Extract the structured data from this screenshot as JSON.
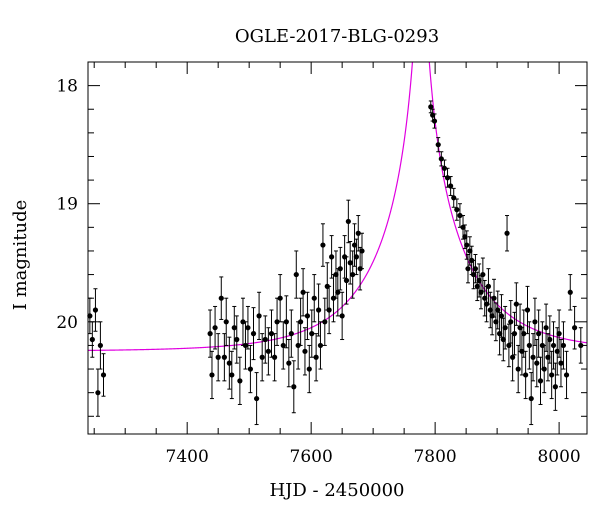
{
  "chart_data": {
    "type": "scatter",
    "title": "OGLE-2017-BLG-0293",
    "xlabel": "HJD - 2450000",
    "ylabel": "I magnitude",
    "xlim": [
      7240,
      8045
    ],
    "ylim": [
      20.95,
      17.8
    ],
    "y_inverted": true,
    "x_ticks": [
      7400,
      7600,
      7800,
      8000
    ],
    "y_ticks": [
      18,
      19,
      20
    ],
    "grid": false,
    "colors": {
      "data": "#000000",
      "model": "#e000e0"
    },
    "model": {
      "type": "line",
      "t0": 7777,
      "tE": 140,
      "u0": 0.04,
      "baseline_mag": 20.25
    },
    "series": [
      {
        "type": "scatter_errorbars",
        "points": [
          [
            7243,
            19.95,
            0.15
          ],
          [
            7247,
            20.15,
            0.15
          ],
          [
            7252,
            19.9,
            0.18
          ],
          [
            7256,
            20.6,
            0.2
          ],
          [
            7260,
            20.2,
            0.2
          ],
          [
            7265,
            20.45,
            0.18
          ],
          [
            7437,
            20.1,
            0.2
          ],
          [
            7440,
            20.45,
            0.2
          ],
          [
            7445,
            20.05,
            0.18
          ],
          [
            7450,
            20.3,
            0.2
          ],
          [
            7455,
            19.8,
            0.18
          ],
          [
            7460,
            20.3,
            0.2
          ],
          [
            7463,
            20.0,
            0.2
          ],
          [
            7468,
            20.35,
            0.22
          ],
          [
            7472,
            20.45,
            0.2
          ],
          [
            7476,
            20.05,
            0.18
          ],
          [
            7480,
            20.15,
            0.2
          ],
          [
            7485,
            20.5,
            0.2
          ],
          [
            7490,
            20.0,
            0.2
          ],
          [
            7494,
            20.2,
            0.2
          ],
          [
            7498,
            20.05,
            0.18
          ],
          [
            7502,
            20.4,
            0.2
          ],
          [
            7507,
            20.1,
            0.22
          ],
          [
            7512,
            20.65,
            0.22
          ],
          [
            7516,
            19.95,
            0.2
          ],
          [
            7521,
            20.3,
            0.2
          ],
          [
            7526,
            20.15,
            0.2
          ],
          [
            7531,
            20.25,
            0.2
          ],
          [
            7536,
            20.1,
            0.2
          ],
          [
            7541,
            20.3,
            0.2
          ],
          [
            7545,
            20.0,
            0.2
          ],
          [
            7550,
            19.8,
            0.2
          ],
          [
            7555,
            20.2,
            0.2
          ],
          [
            7560,
            20.0,
            0.22
          ],
          [
            7564,
            20.35,
            0.2
          ],
          [
            7568,
            20.1,
            0.2
          ],
          [
            7572,
            20.55,
            0.22
          ],
          [
            7576,
            19.6,
            0.2
          ],
          [
            7579,
            20.2,
            0.2
          ],
          [
            7583,
            20.0,
            0.2
          ],
          [
            7587,
            19.75,
            0.2
          ],
          [
            7590,
            20.25,
            0.2
          ],
          [
            7594,
            19.95,
            0.2
          ],
          [
            7597,
            20.4,
            0.2
          ],
          [
            7601,
            20.1,
            0.2
          ],
          [
            7605,
            19.8,
            0.2
          ],
          [
            7608,
            20.3,
            0.2
          ],
          [
            7612,
            19.9,
            0.22
          ],
          [
            7615,
            20.2,
            0.2
          ],
          [
            7619,
            19.35,
            0.18
          ],
          [
            7622,
            20.0,
            0.2
          ],
          [
            7626,
            19.7,
            0.2
          ],
          [
            7629,
            19.9,
            0.2
          ],
          [
            7633,
            19.45,
            0.18
          ],
          [
            7636,
            19.8,
            0.2
          ],
          [
            7640,
            19.6,
            0.2
          ],
          [
            7643,
            19.75,
            0.2
          ],
          [
            7647,
            19.55,
            0.18
          ],
          [
            7650,
            19.95,
            0.2
          ],
          [
            7654,
            19.45,
            0.18
          ],
          [
            7657,
            19.65,
            0.2
          ],
          [
            7660,
            19.15,
            0.18
          ],
          [
            7663,
            19.5,
            0.18
          ],
          [
            7667,
            19.6,
            0.2
          ],
          [
            7670,
            19.35,
            0.18
          ],
          [
            7673,
            19.45,
            0.15
          ],
          [
            7676,
            19.25,
            0.15
          ],
          [
            7679,
            19.55,
            0.18
          ],
          [
            7682,
            19.4,
            0.15
          ],
          [
            7793,
            18.18,
            0.05
          ],
          [
            7796,
            18.25,
            0.05
          ],
          [
            7799,
            18.3,
            0.06
          ],
          [
            7805,
            18.5,
            0.06
          ],
          [
            7810,
            18.62,
            0.06
          ],
          [
            7815,
            18.7,
            0.07
          ],
          [
            7820,
            18.78,
            0.08
          ],
          [
            7825,
            18.85,
            0.08
          ],
          [
            7830,
            18.95,
            0.08
          ],
          [
            7835,
            19.05,
            0.09
          ],
          [
            7840,
            19.1,
            0.1
          ],
          [
            7845,
            19.2,
            0.1
          ],
          [
            7848,
            19.28,
            0.1
          ],
          [
            7851,
            19.35,
            0.12
          ],
          [
            7853,
            19.55,
            0.12
          ],
          [
            7856,
            19.4,
            0.12
          ],
          [
            7859,
            19.48,
            0.12
          ],
          [
            7862,
            19.6,
            0.12
          ],
          [
            7865,
            19.55,
            0.12
          ],
          [
            7868,
            19.7,
            0.12
          ],
          [
            7871,
            19.65,
            0.14
          ],
          [
            7874,
            19.75,
            0.14
          ],
          [
            7877,
            19.6,
            0.14
          ],
          [
            7880,
            19.8,
            0.15
          ],
          [
            7883,
            19.85,
            0.15
          ],
          [
            7886,
            19.7,
            0.15
          ],
          [
            7889,
            19.9,
            0.15
          ],
          [
            7892,
            19.95,
            0.16
          ],
          [
            7895,
            19.8,
            0.16
          ],
          [
            7898,
            20.0,
            0.16
          ],
          [
            7901,
            19.9,
            0.16
          ],
          [
            7904,
            20.1,
            0.18
          ],
          [
            7907,
            19.95,
            0.18
          ],
          [
            7910,
            20.15,
            0.18
          ],
          [
            7913,
            20.05,
            0.18
          ],
          [
            7916,
            19.25,
            0.15
          ],
          [
            7919,
            20.2,
            0.18
          ],
          [
            7922,
            20.0,
            0.18
          ],
          [
            7925,
            20.3,
            0.2
          ],
          [
            7928,
            20.1,
            0.18
          ],
          [
            7931,
            19.85,
            0.18
          ],
          [
            7934,
            20.4,
            0.2
          ],
          [
            7937,
            20.05,
            0.2
          ],
          [
            7940,
            20.25,
            0.2
          ],
          [
            7943,
            20.1,
            0.2
          ],
          [
            7946,
            20.45,
            0.2
          ],
          [
            7949,
            19.9,
            0.2
          ],
          [
            7952,
            20.2,
            0.2
          ],
          [
            7955,
            20.65,
            0.22
          ],
          [
            7958,
            20.3,
            0.2
          ],
          [
            7961,
            20.0,
            0.2
          ],
          [
            7964,
            20.35,
            0.2
          ],
          [
            7967,
            20.1,
            0.2
          ],
          [
            7970,
            20.5,
            0.2
          ],
          [
            7973,
            20.2,
            0.2
          ],
          [
            7976,
            20.4,
            0.2
          ],
          [
            7979,
            20.05,
            0.2
          ],
          [
            7982,
            20.3,
            0.2
          ],
          [
            7985,
            20.15,
            0.2
          ],
          [
            7988,
            20.45,
            0.2
          ],
          [
            7991,
            20.2,
            0.2
          ],
          [
            7994,
            20.55,
            0.2
          ],
          [
            7997,
            20.25,
            0.2
          ],
          [
            8000,
            20.1,
            0.2
          ],
          [
            8003,
            20.35,
            0.2
          ],
          [
            8007,
            20.2,
            0.2
          ],
          [
            8012,
            20.45,
            0.2
          ],
          [
            8018,
            19.75,
            0.15
          ],
          [
            8025,
            20.05,
            0.18
          ],
          [
            8035,
            20.2,
            0.15
          ]
        ]
      }
    ]
  }
}
